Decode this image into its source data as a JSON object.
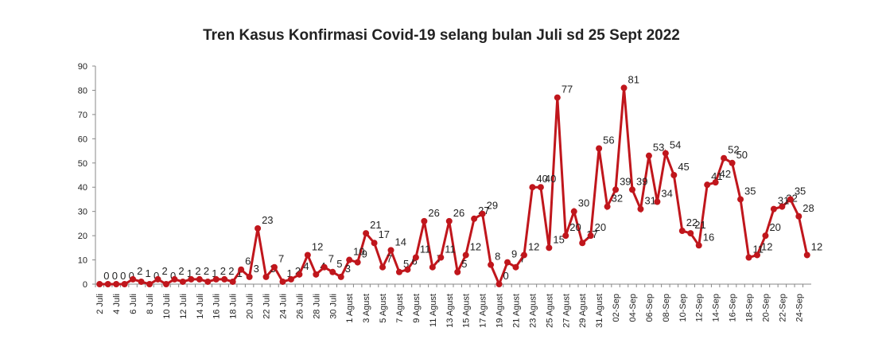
{
  "chart_data": {
    "type": "line",
    "title": "Tren Kasus Konfirmasi Covid-19 selang bulan Juli  sd  25 Sept 2022",
    "categories": [
      "2 Juli",
      null,
      "4 Juli",
      null,
      "6 Juli",
      null,
      "8 Juli",
      null,
      "10 Juli",
      null,
      "12 Juli",
      null,
      "14 Juli",
      null,
      "16 Juli",
      null,
      "18 Juli",
      null,
      "20 Juli",
      null,
      "22 Juli",
      null,
      "24 Juli",
      null,
      "26 Juli",
      null,
      "28 Juli",
      null,
      "30 Juli",
      null,
      "1 Agust",
      null,
      "3 Agust",
      null,
      "5 Agust",
      null,
      "7 Agust",
      null,
      "9 Agust",
      null,
      "11 Agust",
      null,
      "13 Agust",
      null,
      "15 Agust",
      null,
      "17 Agust",
      null,
      "19 Agust",
      null,
      "21 Agust",
      null,
      "23 Agust",
      null,
      "25 Agust",
      null,
      "27 Agust",
      null,
      "29 Agust",
      null,
      "31 Agust",
      null,
      "02-Sep",
      null,
      "04-Sep",
      null,
      "06-Sep",
      null,
      "08-Sep",
      null,
      "10-Sep",
      null,
      "12-Sep",
      null,
      "14-Sep",
      null,
      "16-Sep",
      null,
      "18-Sep",
      null,
      "20-Sep",
      null,
      "22-Sep",
      null,
      "24-Sep",
      null
    ],
    "series": [
      {
        "name": "Kasus Konfirmasi",
        "color": "#c0161c",
        "values": [
          0,
          0,
          0,
          0,
          2,
          1,
          0,
          2,
          0,
          2,
          1,
          2,
          2,
          1,
          2,
          2,
          1,
          6,
          3,
          23,
          3,
          7,
          1,
          2,
          4,
          12,
          4,
          7,
          5,
          3,
          10,
          9,
          21,
          17,
          7,
          14,
          5,
          6,
          11,
          26,
          7,
          11,
          26,
          5,
          12,
          27,
          29,
          8,
          0,
          9,
          7,
          12,
          40,
          40,
          15,
          77,
          20,
          30,
          17,
          20,
          56,
          32,
          39,
          81,
          39,
          31,
          53,
          34,
          54,
          45,
          22,
          21,
          16,
          41,
          42,
          52,
          50,
          35,
          11,
          12,
          20,
          31,
          32,
          35,
          28,
          12
        ]
      }
    ],
    "ylim": [
      0,
      90
    ],
    "yticks": [
      0,
      10,
      20,
      30,
      40,
      50,
      60,
      70,
      80,
      90
    ]
  }
}
